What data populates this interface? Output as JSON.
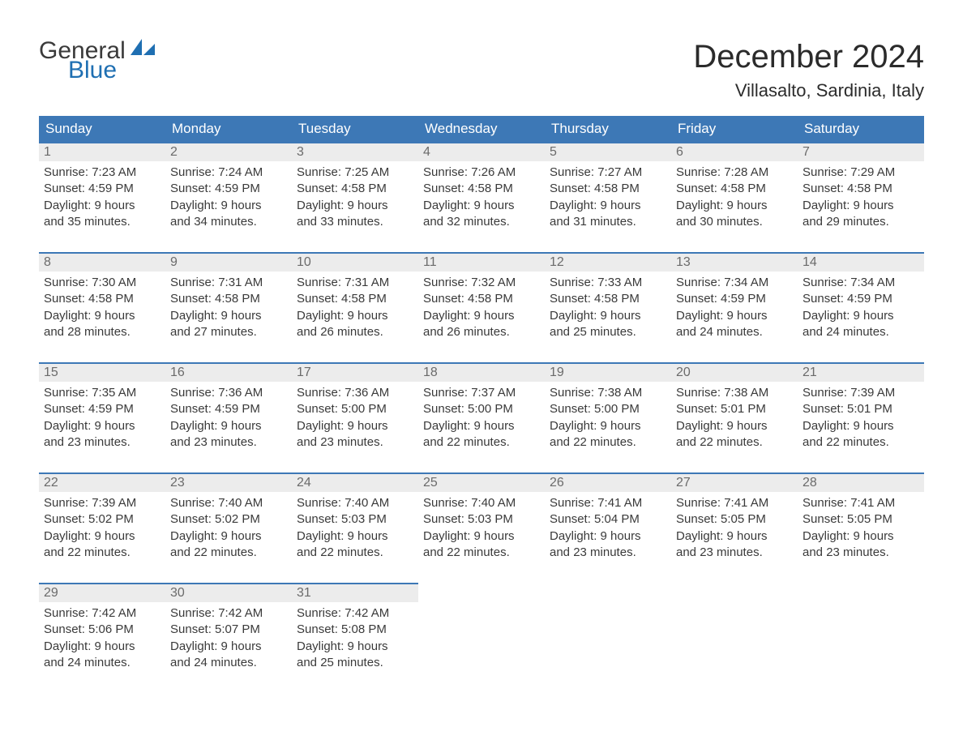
{
  "brand": {
    "text1": "General",
    "text2": "Blue",
    "color_primary": "#1f6fb2",
    "color_text": "#3a3a3a"
  },
  "title": {
    "month": "December 2024",
    "location": "Villasalto, Sardinia, Italy"
  },
  "calendar": {
    "header_bg": "#3d78b6",
    "header_fg": "#ffffff",
    "daynum_bg": "#ececec",
    "daynum_fg": "#6b6b6b",
    "rule_color": "#3d78b6",
    "columns": [
      "Sunday",
      "Monday",
      "Tuesday",
      "Wednesday",
      "Thursday",
      "Friday",
      "Saturday"
    ],
    "weeks": [
      [
        {
          "n": "1",
          "sunrise": "7:23 AM",
          "sunset": "4:59 PM",
          "dl1": "Daylight: 9 hours",
          "dl2": "and 35 minutes."
        },
        {
          "n": "2",
          "sunrise": "7:24 AM",
          "sunset": "4:59 PM",
          "dl1": "Daylight: 9 hours",
          "dl2": "and 34 minutes."
        },
        {
          "n": "3",
          "sunrise": "7:25 AM",
          "sunset": "4:58 PM",
          "dl1": "Daylight: 9 hours",
          "dl2": "and 33 minutes."
        },
        {
          "n": "4",
          "sunrise": "7:26 AM",
          "sunset": "4:58 PM",
          "dl1": "Daylight: 9 hours",
          "dl2": "and 32 minutes."
        },
        {
          "n": "5",
          "sunrise": "7:27 AM",
          "sunset": "4:58 PM",
          "dl1": "Daylight: 9 hours",
          "dl2": "and 31 minutes."
        },
        {
          "n": "6",
          "sunrise": "7:28 AM",
          "sunset": "4:58 PM",
          "dl1": "Daylight: 9 hours",
          "dl2": "and 30 minutes."
        },
        {
          "n": "7",
          "sunrise": "7:29 AM",
          "sunset": "4:58 PM",
          "dl1": "Daylight: 9 hours",
          "dl2": "and 29 minutes."
        }
      ],
      [
        {
          "n": "8",
          "sunrise": "7:30 AM",
          "sunset": "4:58 PM",
          "dl1": "Daylight: 9 hours",
          "dl2": "and 28 minutes."
        },
        {
          "n": "9",
          "sunrise": "7:31 AM",
          "sunset": "4:58 PM",
          "dl1": "Daylight: 9 hours",
          "dl2": "and 27 minutes."
        },
        {
          "n": "10",
          "sunrise": "7:31 AM",
          "sunset": "4:58 PM",
          "dl1": "Daylight: 9 hours",
          "dl2": "and 26 minutes."
        },
        {
          "n": "11",
          "sunrise": "7:32 AM",
          "sunset": "4:58 PM",
          "dl1": "Daylight: 9 hours",
          "dl2": "and 26 minutes."
        },
        {
          "n": "12",
          "sunrise": "7:33 AM",
          "sunset": "4:58 PM",
          "dl1": "Daylight: 9 hours",
          "dl2": "and 25 minutes."
        },
        {
          "n": "13",
          "sunrise": "7:34 AM",
          "sunset": "4:59 PM",
          "dl1": "Daylight: 9 hours",
          "dl2": "and 24 minutes."
        },
        {
          "n": "14",
          "sunrise": "7:34 AM",
          "sunset": "4:59 PM",
          "dl1": "Daylight: 9 hours",
          "dl2": "and 24 minutes."
        }
      ],
      [
        {
          "n": "15",
          "sunrise": "7:35 AM",
          "sunset": "4:59 PM",
          "dl1": "Daylight: 9 hours",
          "dl2": "and 23 minutes."
        },
        {
          "n": "16",
          "sunrise": "7:36 AM",
          "sunset": "4:59 PM",
          "dl1": "Daylight: 9 hours",
          "dl2": "and 23 minutes."
        },
        {
          "n": "17",
          "sunrise": "7:36 AM",
          "sunset": "5:00 PM",
          "dl1": "Daylight: 9 hours",
          "dl2": "and 23 minutes."
        },
        {
          "n": "18",
          "sunrise": "7:37 AM",
          "sunset": "5:00 PM",
          "dl1": "Daylight: 9 hours",
          "dl2": "and 22 minutes."
        },
        {
          "n": "19",
          "sunrise": "7:38 AM",
          "sunset": "5:00 PM",
          "dl1": "Daylight: 9 hours",
          "dl2": "and 22 minutes."
        },
        {
          "n": "20",
          "sunrise": "7:38 AM",
          "sunset": "5:01 PM",
          "dl1": "Daylight: 9 hours",
          "dl2": "and 22 minutes."
        },
        {
          "n": "21",
          "sunrise": "7:39 AM",
          "sunset": "5:01 PM",
          "dl1": "Daylight: 9 hours",
          "dl2": "and 22 minutes."
        }
      ],
      [
        {
          "n": "22",
          "sunrise": "7:39 AM",
          "sunset": "5:02 PM",
          "dl1": "Daylight: 9 hours",
          "dl2": "and 22 minutes."
        },
        {
          "n": "23",
          "sunrise": "7:40 AM",
          "sunset": "5:02 PM",
          "dl1": "Daylight: 9 hours",
          "dl2": "and 22 minutes."
        },
        {
          "n": "24",
          "sunrise": "7:40 AM",
          "sunset": "5:03 PM",
          "dl1": "Daylight: 9 hours",
          "dl2": "and 22 minutes."
        },
        {
          "n": "25",
          "sunrise": "7:40 AM",
          "sunset": "5:03 PM",
          "dl1": "Daylight: 9 hours",
          "dl2": "and 22 minutes."
        },
        {
          "n": "26",
          "sunrise": "7:41 AM",
          "sunset": "5:04 PM",
          "dl1": "Daylight: 9 hours",
          "dl2": "and 23 minutes."
        },
        {
          "n": "27",
          "sunrise": "7:41 AM",
          "sunset": "5:05 PM",
          "dl1": "Daylight: 9 hours",
          "dl2": "and 23 minutes."
        },
        {
          "n": "28",
          "sunrise": "7:41 AM",
          "sunset": "5:05 PM",
          "dl1": "Daylight: 9 hours",
          "dl2": "and 23 minutes."
        }
      ],
      [
        {
          "n": "29",
          "sunrise": "7:42 AM",
          "sunset": "5:06 PM",
          "dl1": "Daylight: 9 hours",
          "dl2": "and 24 minutes."
        },
        {
          "n": "30",
          "sunrise": "7:42 AM",
          "sunset": "5:07 PM",
          "dl1": "Daylight: 9 hours",
          "dl2": "and 24 minutes."
        },
        {
          "n": "31",
          "sunrise": "7:42 AM",
          "sunset": "5:08 PM",
          "dl1": "Daylight: 9 hours",
          "dl2": "and 25 minutes."
        },
        null,
        null,
        null,
        null
      ]
    ]
  }
}
